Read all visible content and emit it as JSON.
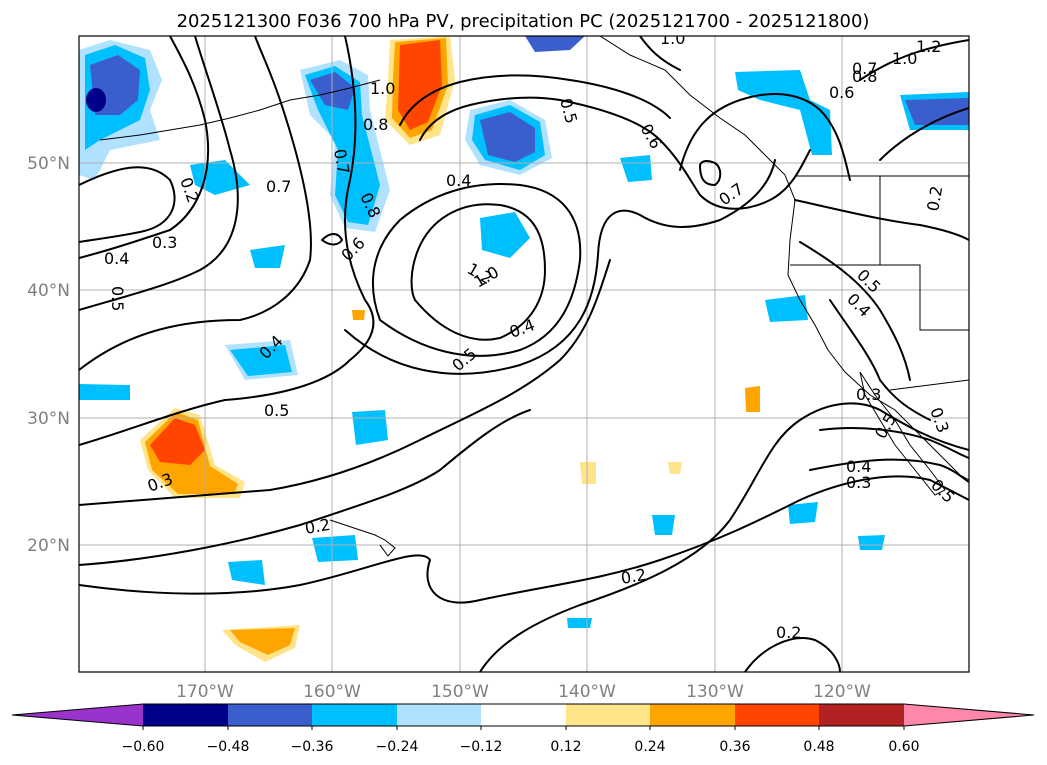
{
  "title": "2025121300 F036 700 hPa PV, precipitation PC (2025121700 - 2025121800)",
  "map": {
    "lon_labels": [
      "170°W",
      "160°W",
      "150°W",
      "140°W",
      "130°W",
      "120°W"
    ],
    "lat_labels": [
      "50°N",
      "40°N",
      "30°N",
      "20°N"
    ],
    "contour_labels": [
      "0.2",
      "0.7",
      "0.3",
      "0.4",
      "0.5",
      "1.0",
      "0.8",
      "0.7",
      "0.6",
      "0.8",
      "0.4",
      "0.5",
      "0.6",
      "0.7",
      "0.8",
      "1.0",
      "1.2",
      "0.6",
      "0.7",
      "0.2",
      "1.2",
      "1.0",
      "0.4",
      "0.4",
      "0.5",
      "0.5",
      "0.3",
      "0.2",
      "0.2",
      "0.5",
      "0.4",
      "0.3",
      "0.5",
      "0.4",
      "0.3",
      "0.5",
      "0.3",
      "0.2",
      "1.0"
    ],
    "colors": {
      "shade_neg_strong": "#00008b",
      "shade_neg_mid": "#3a5fcd",
      "shade_neg_light": "#00bfff",
      "shade_neg_pale": "#b0e2ff",
      "shade_pos_pale": "#ffe48a",
      "shade_pos_mid": "#ffa500",
      "shade_pos_strong": "#ff4500"
    }
  },
  "colorbar": {
    "ticks": [
      "−0.60",
      "−0.48",
      "−0.36",
      "−0.24",
      "−0.12",
      "0.12",
      "0.24",
      "0.36",
      "0.48",
      "0.60"
    ],
    "colors": [
      "#9933cc",
      "#00008b",
      "#3a5fcd",
      "#00bfff",
      "#b0e2ff",
      "#ffffff",
      "#ffe48a",
      "#ffa500",
      "#ff4500",
      "#b22222",
      "#ff88aa"
    ]
  },
  "chart_data": {
    "type": "map",
    "title": "2025121300 F036 700 hPa PV, precipitation PC (2025121700 - 2025121800)",
    "lon_range": [
      -180,
      -110
    ],
    "lat_range": [
      10,
      60
    ],
    "contour_levels": [
      0.2,
      0.3,
      0.4,
      0.5,
      0.6,
      0.7,
      0.8,
      1.0,
      1.2
    ],
    "shading_levels": [
      -0.6,
      -0.48,
      -0.36,
      -0.24,
      -0.12,
      0.12,
      0.24,
      0.36,
      0.48,
      0.6
    ]
  }
}
